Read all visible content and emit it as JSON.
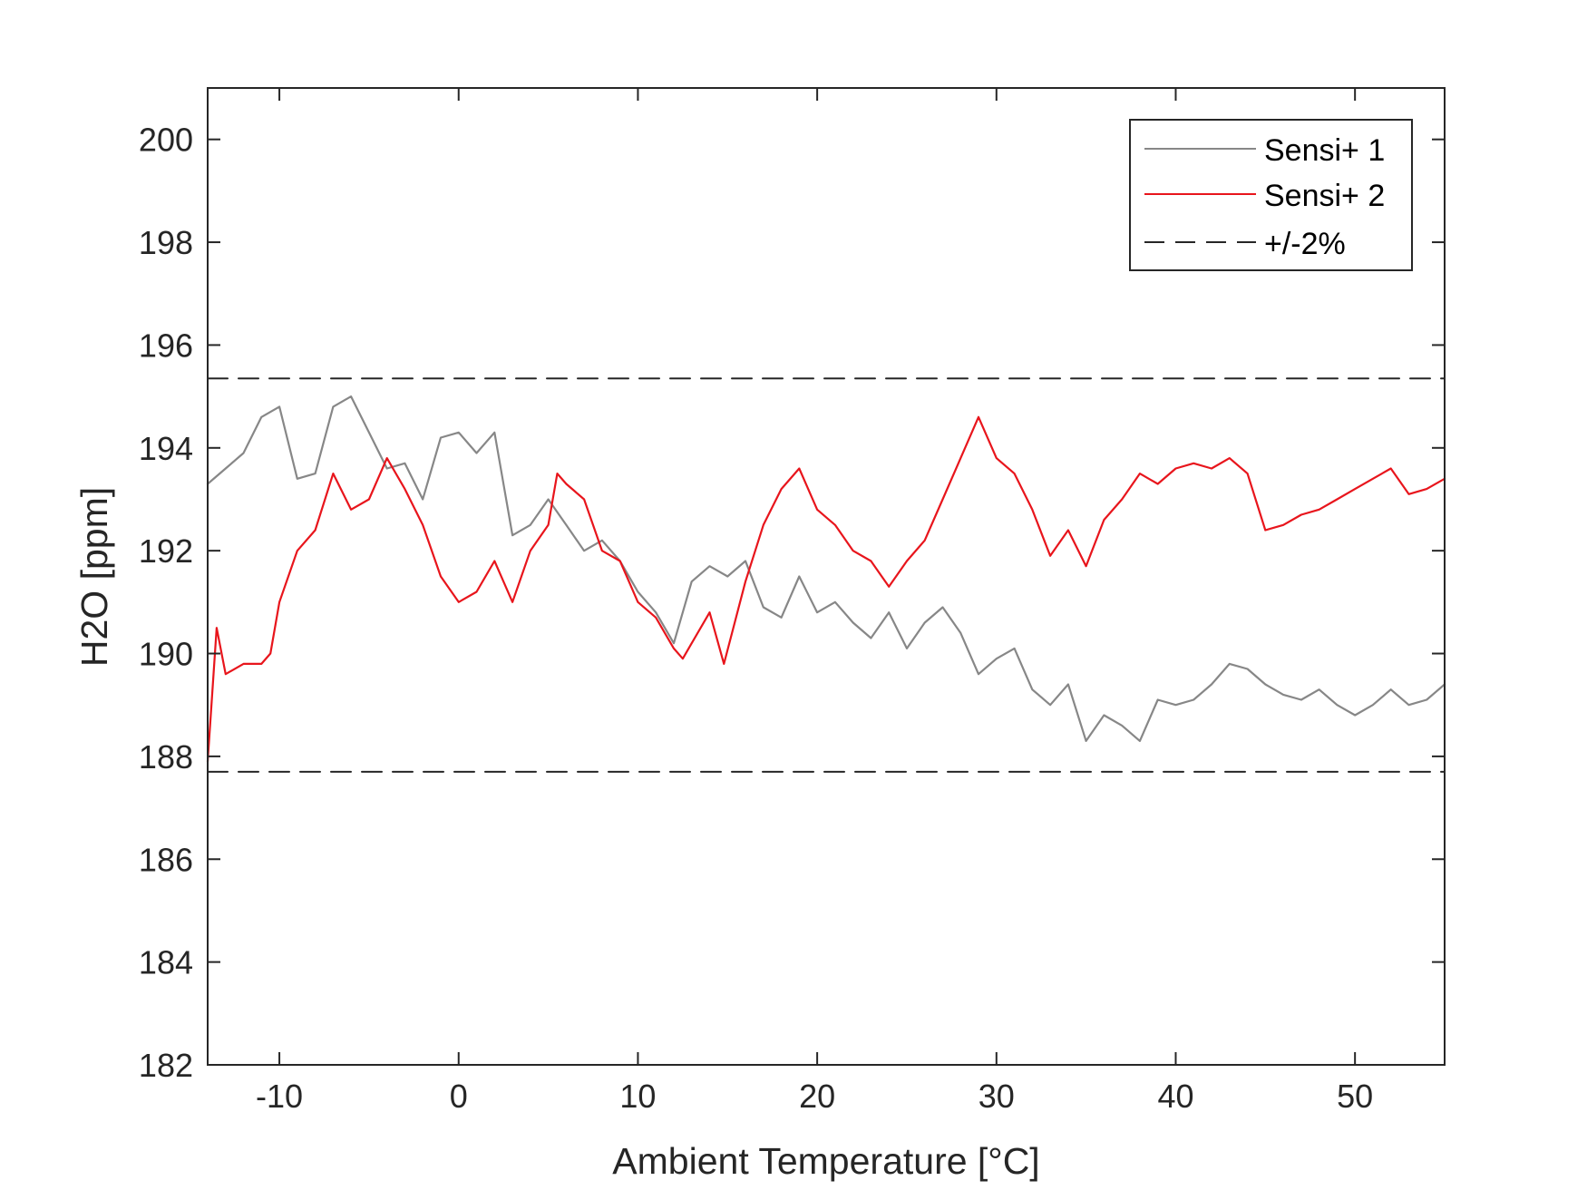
{
  "chart_data": {
    "type": "line",
    "title": "",
    "xlabel": "Ambient Temperature [°C]",
    "ylabel": "H2O [ppm]",
    "xlim": [
      -14,
      55
    ],
    "ylim": [
      182,
      201
    ],
    "xticks": [
      -10,
      0,
      10,
      20,
      30,
      40,
      50
    ],
    "yticks": [
      182,
      184,
      186,
      188,
      190,
      192,
      194,
      196,
      198,
      200
    ],
    "xtick_labels": [
      "-10",
      "0",
      "10",
      "20",
      "30",
      "40",
      "50"
    ],
    "ytick_labels": [
      "182",
      "184",
      "186",
      "188",
      "190",
      "192",
      "194",
      "196",
      "198",
      "200"
    ],
    "grid": false,
    "legend": {
      "position": "top-right",
      "entries": [
        "Sensi+ 1",
        "Sensi+ 2",
        "+/-2%"
      ]
    },
    "series": [
      {
        "name": "Sensi+ 1",
        "color": "#878787",
        "style": "solid",
        "x": [
          -14,
          -13,
          -12,
          -11,
          -10,
          -9,
          -8,
          -7,
          -6,
          -5,
          -4,
          -3,
          -2,
          -1,
          0,
          1,
          2,
          3,
          4,
          5,
          6,
          7,
          8,
          9,
          10,
          11,
          12,
          13,
          14,
          15,
          16,
          17,
          18,
          19,
          20,
          21,
          22,
          23,
          24,
          25,
          26,
          27,
          28,
          29,
          30,
          31,
          32,
          33,
          34,
          35,
          36,
          37,
          38,
          39,
          40,
          41,
          42,
          43,
          44,
          45,
          46,
          47,
          48,
          49,
          50,
          51,
          52,
          53,
          54,
          55
        ],
        "y": [
          193.3,
          193.6,
          193.9,
          194.6,
          194.8,
          193.4,
          193.5,
          194.8,
          195.0,
          194.3,
          193.6,
          193.7,
          193.0,
          194.2,
          194.3,
          193.9,
          194.3,
          192.3,
          192.5,
          193.0,
          192.5,
          192.0,
          192.2,
          191.8,
          191.2,
          190.8,
          190.2,
          191.4,
          191.7,
          191.5,
          191.8,
          190.9,
          190.7,
          191.5,
          190.8,
          191.0,
          190.6,
          190.3,
          190.8,
          190.1,
          190.6,
          190.9,
          190.4,
          189.6,
          189.9,
          190.1,
          189.3,
          189.0,
          189.4,
          188.3,
          188.8,
          188.6,
          188.3,
          189.1,
          189.0,
          189.1,
          189.4,
          189.8,
          189.7,
          189.4,
          189.2,
          189.1,
          189.3,
          189.0,
          188.8,
          189.0,
          189.3,
          189.0,
          189.1,
          189.4
        ]
      },
      {
        "name": "Sensi+ 2",
        "color": "#e8151c",
        "style": "solid",
        "x": [
          -14,
          -13.5,
          -13,
          -12,
          -11,
          -10.5,
          -10,
          -9,
          -8,
          -7,
          -6,
          -5,
          -4,
          -3,
          -2,
          -1,
          0,
          1,
          2,
          3,
          4,
          5,
          5.5,
          6,
          7,
          8,
          9,
          10,
          11,
          12,
          12.5,
          13,
          14,
          14.8,
          16,
          17,
          18,
          19,
          20,
          21,
          22,
          23,
          24,
          25,
          26,
          27,
          28,
          29,
          30,
          31,
          32,
          33,
          34,
          35,
          36,
          37,
          38,
          39,
          40,
          41,
          42,
          43,
          44,
          45,
          46,
          47,
          48,
          49,
          50,
          51,
          52,
          53,
          54,
          55
        ],
        "y": [
          187.9,
          190.5,
          189.6,
          189.8,
          189.8,
          190.0,
          191.0,
          192.0,
          192.4,
          193.5,
          192.8,
          193.0,
          193.8,
          193.2,
          192.5,
          191.5,
          191.0,
          191.2,
          191.8,
          191.0,
          192.0,
          192.5,
          193.5,
          193.3,
          193.0,
          192.0,
          191.8,
          191.0,
          190.7,
          190.1,
          189.9,
          190.2,
          190.8,
          189.8,
          191.4,
          192.5,
          193.2,
          193.6,
          192.8,
          192.5,
          192.0,
          191.8,
          191.3,
          191.8,
          192.2,
          193.0,
          193.8,
          194.6,
          193.8,
          193.5,
          192.8,
          191.9,
          192.4,
          191.7,
          192.6,
          193.0,
          193.5,
          193.3,
          193.6,
          193.7,
          193.6,
          193.8,
          193.5,
          192.4,
          192.5,
          192.7,
          192.8,
          193.0,
          193.2,
          193.4,
          193.6,
          193.1,
          193.2,
          193.4
        ]
      },
      {
        "name": "+/-2% upper",
        "color": "#262626",
        "style": "dashed",
        "x": [
          -14,
          55
        ],
        "y": [
          195.35,
          195.35
        ]
      },
      {
        "name": "+/-2% lower",
        "color": "#262626",
        "style": "dashed",
        "x": [
          -14,
          55
        ],
        "y": [
          187.7,
          187.7
        ]
      }
    ]
  }
}
